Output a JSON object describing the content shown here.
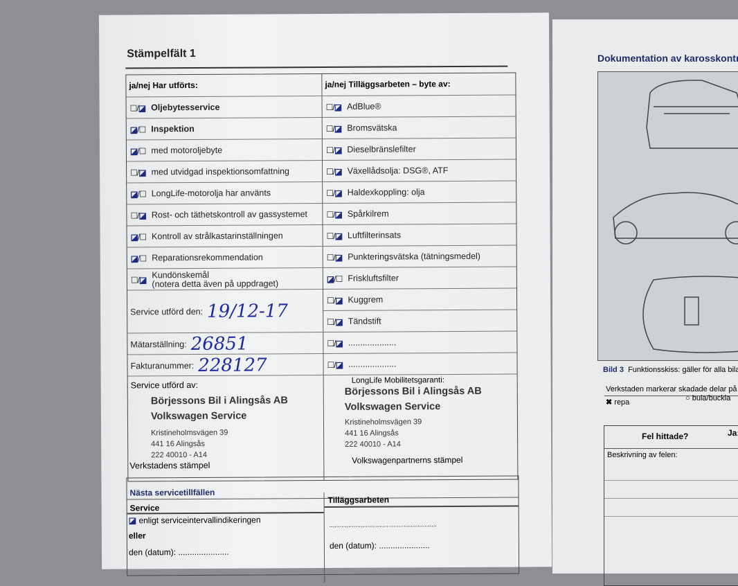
{
  "left_page": {
    "title": "Stämpelfält 1",
    "col_left_header": "ja/nej Har utförts:",
    "col_right_header": "ja/nej Tilläggsarbeten – byte av:",
    "left_items": [
      {
        "label": "Oljebytesservice",
        "checked": "nej",
        "bold": true
      },
      {
        "label": "Inspektion",
        "checked": "ja",
        "bold": true
      },
      {
        "label": "med motoroljebyte",
        "checked": "ja"
      },
      {
        "label": "med utvidgad inspektionsomfattning",
        "checked": "nej"
      },
      {
        "label": "LongLife-motorolja har använts",
        "checked": "ja"
      },
      {
        "label": "Rost- och täthetskontroll av gassystemet",
        "checked": "nej"
      },
      {
        "label": "Kontroll av strålkastarinställningen",
        "checked": "ja"
      },
      {
        "label": "Reparationsrekommendation",
        "checked": "ja"
      },
      {
        "label": "Kundönskemål",
        "label2": "(notera detta även på uppdraget)",
        "checked": "nej"
      }
    ],
    "right_items": [
      {
        "label": "AdBlue®",
        "checked": "nej"
      },
      {
        "label": "Bromsvätska",
        "checked": "nej"
      },
      {
        "label": "Dieselbränslefilter",
        "checked": "nej"
      },
      {
        "label": "Växellådsolja: DSG®, ATF",
        "checked": "nej"
      },
      {
        "label": "Haldexkoppling: olja",
        "checked": "nej"
      },
      {
        "label": "Spårkilrem",
        "checked": "nej"
      },
      {
        "label": "Luftfilterinsats",
        "checked": "nej"
      },
      {
        "label": "Punkteringsvätska (tätningsmedel)",
        "checked": "nej"
      },
      {
        "label": "Friskluftsfilter",
        "checked": "ja"
      },
      {
        "label": "Kuggrem",
        "checked": "nej"
      },
      {
        "label": "Tändstift",
        "checked": "nej"
      },
      {
        "label": "....................",
        "checked": "nej"
      },
      {
        "label": "....................",
        "checked": "nej"
      }
    ],
    "service_date_label": "Service utförd den:",
    "service_date_value": "19/12-17",
    "mileage_label": "Mätarställning:",
    "mileage_value": "26851",
    "invoice_label": "Fakturanummer:",
    "invoice_value": "228127",
    "performed_by_label": "Service utförd av:",
    "stamp_left": {
      "name": "Börjessons Bil i Alingsås AB",
      "brand": "Volkswagen Service",
      "street": "Kristineholmsvägen 39",
      "city": "441 16 Alingsås",
      "code": "222 40010 - A14",
      "caption": "Verkstadens stämpel"
    },
    "mobility_label": "LongLife Mobilitetsgaranti:",
    "stamp_right": {
      "name": "Börjessons Bil i Alingsås AB",
      "brand": "Volkswagen Service",
      "street": "Kristineholmsvägen 39",
      "city": "441 16 Alingsås",
      "code": "222 40010 - A14",
      "caption": "Volkswagenpartnerns stämpel"
    },
    "next": {
      "title": "Nästa servicetillfällen",
      "service": "Service",
      "extra": "Tilläggsarbeten",
      "interval": "enligt serviceintervallindikeringen",
      "or": "eller",
      "date_left": "den (datum): ......................",
      "dots": "..............................................................",
      "date_right": "den (datum): ......................"
    }
  },
  "right_page": {
    "title": "Dokumentation av karosskontr",
    "caption_bold": "Bild 3",
    "caption": "Funktionsskiss: gäller för alla bila",
    "instruction": "Verkstaden markerar skadade delar på b",
    "legend_scratch": "repa",
    "legend_dent": "bula/buckla",
    "found_label": "Fel hittade?",
    "yes_label": "Ja:",
    "desc_label": "Beskrivning av felen:"
  }
}
